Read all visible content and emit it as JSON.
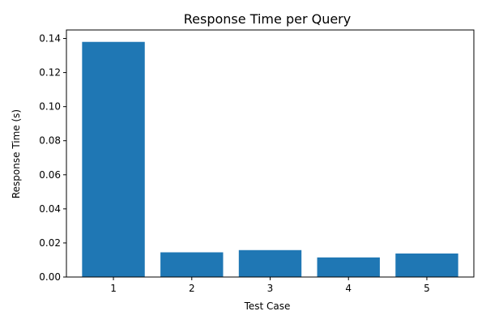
{
  "colors": {
    "bar": "#1f77b4",
    "axis": "#000000",
    "background": "#ffffff"
  },
  "chart_data": {
    "type": "bar",
    "title": "Response Time per Query",
    "xlabel": "Test Case",
    "ylabel": "Response Time (s)",
    "categories": [
      "1",
      "2",
      "3",
      "4",
      "5"
    ],
    "values": [
      0.138,
      0.0145,
      0.0158,
      0.0115,
      0.0138
    ],
    "ylim": [
      0,
      0.145
    ],
    "yticks": [
      0.0,
      0.02,
      0.04,
      0.06,
      0.08,
      0.1,
      0.12,
      0.14
    ],
    "ytick_labels": [
      "0.00",
      "0.02",
      "0.04",
      "0.06",
      "0.08",
      "0.10",
      "0.12",
      "0.14"
    ],
    "grid": false,
    "legend": "none"
  }
}
